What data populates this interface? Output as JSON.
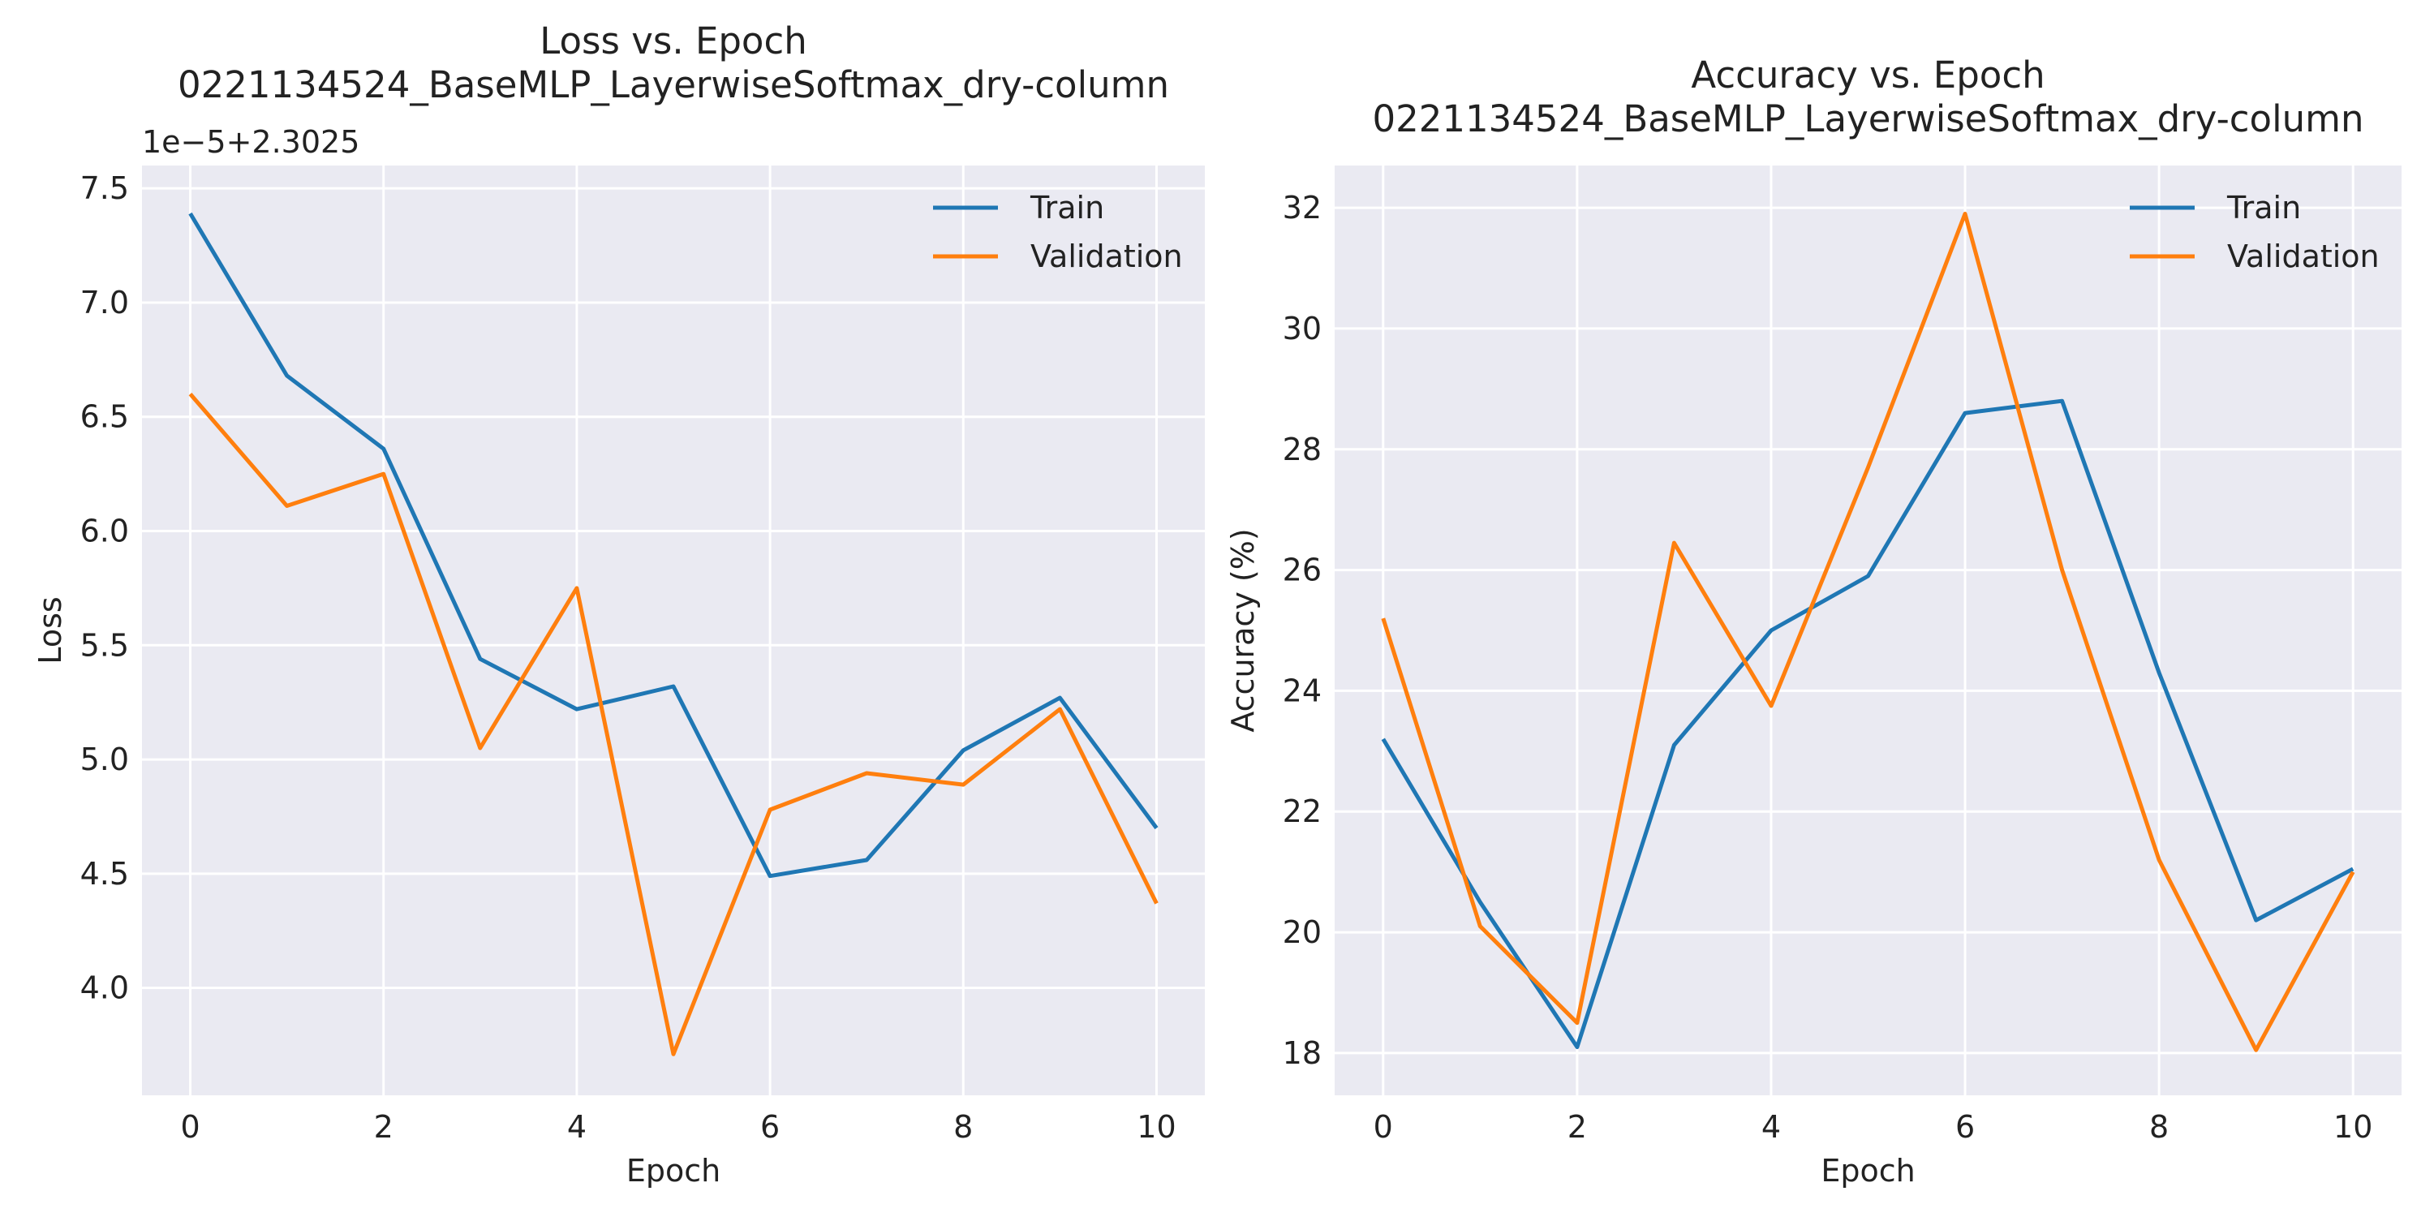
{
  "colors": {
    "train": "#1f77b4",
    "validation": "#ff7f0e",
    "plot_background": "#eaeaf2",
    "grid": "#ffffff"
  },
  "chart_data": [
    {
      "type": "line",
      "title_lines": [
        "Loss vs. Epoch",
        "0221134524_BaseMLP_LayerwiseSoftmax_dry-column"
      ],
      "xlabel": "Epoch",
      "ylabel": "Loss",
      "y_offset_label": "1e−5+2.3025",
      "x": [
        0,
        1,
        2,
        3,
        4,
        5,
        6,
        7,
        8,
        9,
        10
      ],
      "x_ticks": [
        0,
        2,
        4,
        6,
        8,
        10
      ],
      "x_tick_labels": [
        "0",
        "2",
        "4",
        "6",
        "8",
        "10"
      ],
      "y_ticks": [
        4.0,
        4.5,
        5.0,
        5.5,
        6.0,
        6.5,
        7.0,
        7.5
      ],
      "y_tick_labels": [
        "4.0",
        "4.5",
        "5.0",
        "5.5",
        "6.0",
        "6.5",
        "7.0",
        "7.5"
      ],
      "xlim": [
        -0.5,
        10.5
      ],
      "ylim": [
        3.53,
        7.6
      ],
      "grid": true,
      "legend_position": "top-right",
      "series": [
        {
          "name": "Train",
          "color": "#1f77b4",
          "values": [
            7.39,
            6.68,
            6.36,
            5.44,
            5.22,
            5.32,
            4.49,
            4.56,
            5.04,
            5.27,
            4.7
          ]
        },
        {
          "name": "Validation",
          "color": "#ff7f0e",
          "values": [
            6.6,
            6.11,
            6.25,
            5.05,
            5.75,
            3.71,
            4.78,
            4.94,
            4.89,
            5.22,
            4.37
          ]
        }
      ]
    },
    {
      "type": "line",
      "title_lines": [
        "Accuracy vs. Epoch",
        "0221134524_BaseMLP_LayerwiseSoftmax_dry-column"
      ],
      "xlabel": "Epoch",
      "ylabel": "Accuracy (%)",
      "x": [
        0,
        1,
        2,
        3,
        4,
        5,
        6,
        7,
        8,
        9,
        10
      ],
      "x_ticks": [
        0,
        2,
        4,
        6,
        8,
        10
      ],
      "x_tick_labels": [
        "0",
        "2",
        "4",
        "6",
        "8",
        "10"
      ],
      "y_ticks": [
        18,
        20,
        22,
        24,
        26,
        28,
        30,
        32
      ],
      "y_tick_labels": [
        "18",
        "20",
        "22",
        "24",
        "26",
        "28",
        "30",
        "32"
      ],
      "xlim": [
        -0.5,
        10.5
      ],
      "ylim": [
        17.3,
        32.7
      ],
      "grid": true,
      "legend_position": "top-right",
      "series": [
        {
          "name": "Train",
          "color": "#1f77b4",
          "values": [
            23.2,
            20.5,
            18.1,
            23.1,
            25.0,
            25.9,
            28.6,
            28.8,
            24.3,
            20.2,
            21.05
          ]
        },
        {
          "name": "Validation",
          "color": "#ff7f0e",
          "values": [
            25.2,
            20.1,
            18.5,
            26.45,
            23.75,
            27.7,
            31.9,
            26.0,
            21.2,
            18.05,
            21.0
          ]
        }
      ]
    }
  ]
}
